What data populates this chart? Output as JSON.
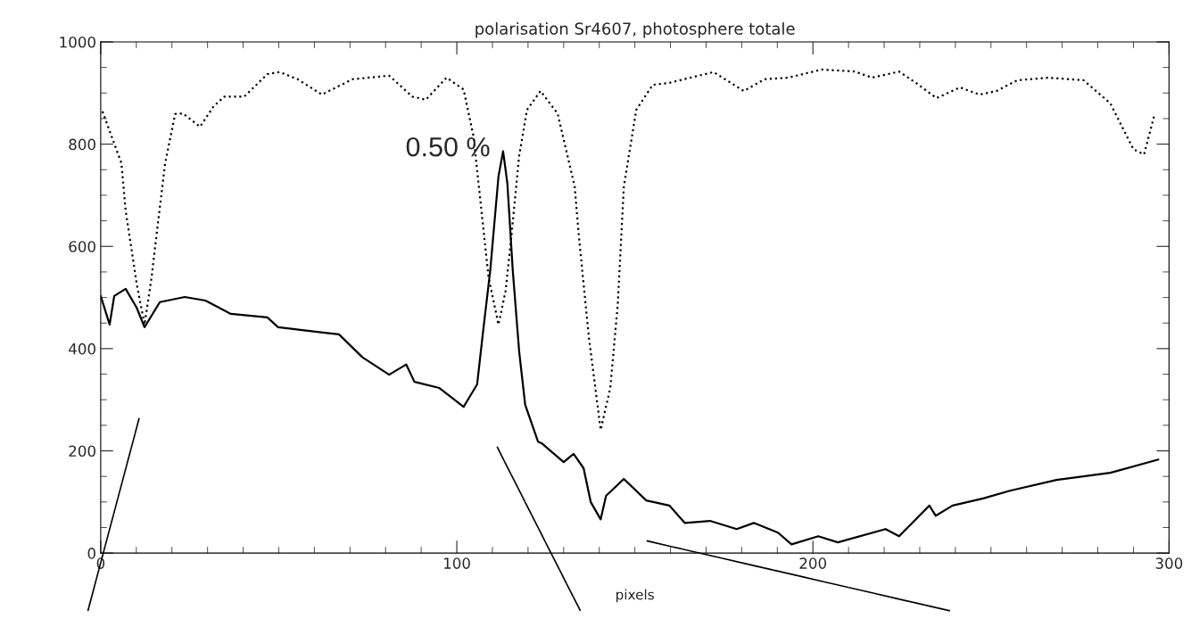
{
  "chart_data": {
    "type": "line",
    "title": "polarisation Sr4607, photosphere totale",
    "xlabel": "pixels",
    "annotations": [
      "0.50 %"
    ],
    "xlim": [
      0,
      300
    ],
    "xticks": [
      0,
      100,
      200,
      300
    ],
    "ylim": [
      0,
      1000
    ],
    "yticks": [
      0,
      200,
      400,
      600,
      800,
      1000
    ],
    "grid": false,
    "legend": false,
    "marker": "none",
    "series": [
      {
        "color": "#000000",
        "line_style": "dotted",
        "x": [
          0.5,
          5.8,
          7.0,
          10.1,
          12.3,
          14.3,
          15.6,
          18.1,
          20.9,
          23.1,
          27.9,
          31.7,
          34.7,
          40.3,
          46.8,
          50.3,
          55.3,
          62.1,
          70.7,
          81.0,
          87.5,
          91.3,
          97.1,
          101.9,
          104.7,
          106.7,
          108.9,
          111.7,
          113.7,
          115.5,
          117.5,
          119.7,
          123.5,
          128.3,
          133.1,
          134.3,
          137.1,
          140.4,
          143.1,
          145.2,
          146.9,
          150.4,
          155.0,
          159.7,
          172.1,
          180.6,
          186.4,
          193.0,
          202.5,
          211.8,
          216.6,
          224.2,
          228.9,
          234.7,
          241.3,
          246.8,
          251.6,
          257.4,
          266,
          276,
          283.5,
          290,
          293,
          296
        ],
        "values": [
          864,
          763,
          670,
          527,
          447,
          540,
          618,
          763,
          859,
          860,
          834,
          874,
          893,
          893,
          937,
          941,
          927,
          897,
          927,
          934,
          893,
          887,
          930,
          907,
          815,
          684,
          540,
          447,
          513,
          632,
          777,
          867,
          904,
          860,
          717,
          618,
          421,
          241,
          323,
          487,
          717,
          867,
          916,
          920,
          941,
          904,
          927,
          930,
          946,
          942,
          930,
          942,
          920,
          890,
          911,
          897,
          904,
          925,
          930,
          925,
          880,
          790,
          780,
          860
        ]
      },
      {
        "color": "#000000",
        "line_style": "solid",
        "x": [
          0,
          2.5,
          3.8,
          7,
          10.1,
          12.3,
          16.6,
          23.6,
          29.4,
          36.5,
          46.8,
          49.8,
          62.9,
          66.9,
          73.5,
          81,
          85.8,
          88.1,
          95.1,
          101.9,
          105.7,
          107.4,
          109.4,
          111.7,
          113,
          114.2,
          115.7,
          117.5,
          119.2,
          122.8,
          123.8,
          130,
          132.8,
          135.6,
          137.6,
          140.4,
          141.9,
          146.9,
          153.2,
          159.7,
          164,
          171.1,
          178.6,
          183.4,
          190.2,
          194,
          201.5,
          207,
          220.4,
          224.2,
          232.7,
          234.5,
          239.2,
          247.8,
          255.3,
          268.4,
          283.5,
          297
        ],
        "values": [
          503,
          447,
          503,
          517,
          480,
          442,
          491,
          501,
          494,
          468,
          461,
          442,
          431,
          428,
          383,
          349,
          369,
          335,
          323,
          286,
          330,
          435,
          554,
          737,
          786,
          723,
          554,
          395,
          290,
          218,
          215,
          178,
          194,
          166,
          100,
          66,
          112,
          145,
          103,
          93,
          59,
          63,
          47,
          59,
          40,
          17,
          33,
          21,
          47,
          33,
          93,
          73,
          93,
          107,
          122,
          143,
          157,
          183
        ]
      }
    ]
  }
}
